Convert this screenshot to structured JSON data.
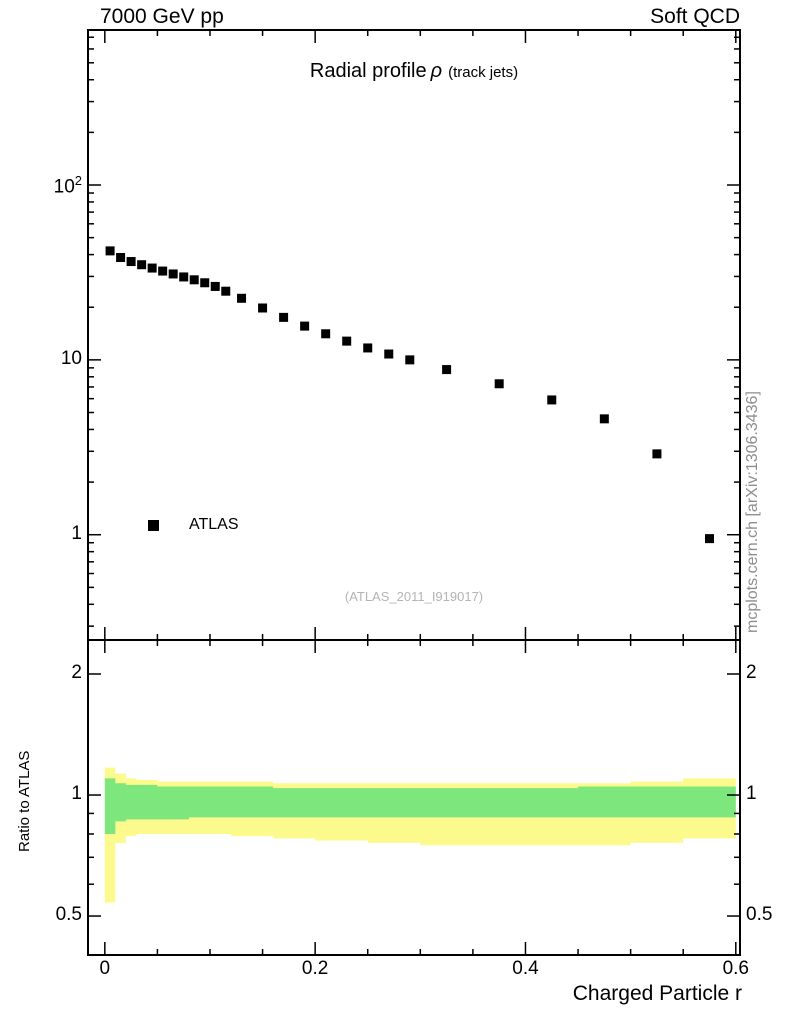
{
  "header": {
    "left": "7000 GeV pp",
    "right": "Soft QCD"
  },
  "watermark_right": "mcplots.cern.ch [arXiv:1306.3436]",
  "chart_data": {
    "type": "scatter",
    "title": "Radial profile",
    "title_symbol": "ρ",
    "title_suffix": "(track jets)",
    "xlabel": "Charged Particle r",
    "ylabel_ratio": "Ratio to ATLAS",
    "annotation": "(ATLAS_2011_I919017)",
    "legend": [
      {
        "label": "ATLAS",
        "marker": "filled-square",
        "color": "#000000"
      }
    ],
    "legend_position": "inside-left",
    "grid": false,
    "frame_x_range": [
      -0.016,
      0.604
    ],
    "x_ticks": [
      0,
      0.2,
      0.4,
      0.6
    ],
    "x_minor_tick_step": 0.05,
    "main": {
      "y_scale": "log",
      "y_range": [
        0.25,
        770
      ],
      "y_ticks": [
        1,
        10,
        100
      ],
      "series": [
        {
          "name": "ATLAS",
          "marker": "filled-square",
          "color": "#000000",
          "x": [
            0.005,
            0.015,
            0.025,
            0.035,
            0.045,
            0.055,
            0.065,
            0.075,
            0.085,
            0.095,
            0.105,
            0.115,
            0.13,
            0.15,
            0.17,
            0.19,
            0.21,
            0.23,
            0.25,
            0.27,
            0.29,
            0.325,
            0.375,
            0.425,
            0.475,
            0.525,
            0.575
          ],
          "y": [
            42,
            38.5,
            36.5,
            35,
            33.5,
            32.2,
            31,
            29.8,
            28.7,
            27.6,
            26.3,
            24.7,
            22.5,
            19.8,
            17.5,
            15.6,
            14.1,
            12.8,
            11.7,
            10.8,
            10.0,
            8.8,
            7.3,
            5.9,
            4.6,
            2.9,
            0.95
          ]
        }
      ]
    },
    "ratio": {
      "y_scale": "log",
      "y_range": [
        0.4,
        2.43
      ],
      "y_ticks": [
        0.5,
        1,
        2
      ],
      "y_minor_ticks": [
        0.6,
        0.7,
        0.8,
        0.9
      ],
      "bands": [
        {
          "name": "uncertainty-band-outer",
          "color": "#fdfa8d",
          "edges": [
            0,
            0.01,
            0.02,
            0.03,
            0.05,
            0.08,
            0.12,
            0.16,
            0.2,
            0.25,
            0.3,
            0.35,
            0.4,
            0.45,
            0.5,
            0.55,
            0.6
          ],
          "lo": [
            0.54,
            0.76,
            0.79,
            0.8,
            0.8,
            0.8,
            0.79,
            0.78,
            0.77,
            0.76,
            0.75,
            0.75,
            0.75,
            0.75,
            0.76,
            0.78
          ],
          "hi": [
            1.17,
            1.13,
            1.1,
            1.09,
            1.08,
            1.08,
            1.08,
            1.07,
            1.07,
            1.07,
            1.07,
            1.07,
            1.07,
            1.07,
            1.08,
            1.1
          ]
        },
        {
          "name": "uncertainty-band-inner",
          "color": "#7de67d",
          "edges": [
            0,
            0.01,
            0.02,
            0.03,
            0.05,
            0.08,
            0.12,
            0.16,
            0.2,
            0.25,
            0.3,
            0.35,
            0.4,
            0.45,
            0.5,
            0.55,
            0.6
          ],
          "lo": [
            0.8,
            0.86,
            0.87,
            0.87,
            0.87,
            0.88,
            0.88,
            0.88,
            0.88,
            0.88,
            0.88,
            0.88,
            0.88,
            0.88,
            0.88,
            0.88
          ],
          "hi": [
            1.1,
            1.07,
            1.06,
            1.06,
            1.05,
            1.05,
            1.05,
            1.04,
            1.04,
            1.04,
            1.04,
            1.04,
            1.04,
            1.05,
            1.05,
            1.05
          ]
        }
      ]
    }
  }
}
